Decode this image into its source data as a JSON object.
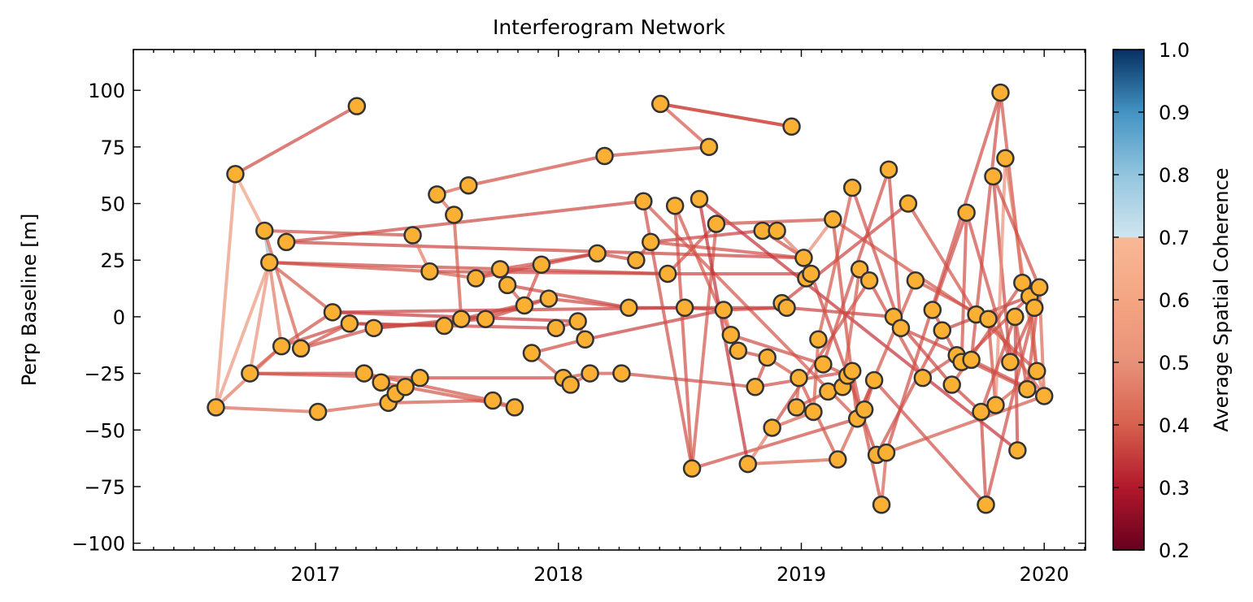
{
  "chart_data": {
    "type": "scatter",
    "title": "Interferogram Network",
    "xlabel": "",
    "ylabel": "Perp Baseline [m]",
    "xlim": [
      2016.25,
      2020.17
    ],
    "ylim": [
      -103,
      118
    ],
    "x_ticks": [
      2017,
      2018,
      2019,
      2020
    ],
    "y_ticks": [
      -100,
      -75,
      -50,
      -25,
      0,
      25,
      50,
      75,
      100
    ],
    "y_tick_labels": [
      "−100",
      "−75",
      "−50",
      "−25",
      "0",
      "25",
      "50",
      "75",
      "100"
    ],
    "grid": false,
    "colorbar": {
      "label": "Average Spatial Coherence",
      "min": 0.2,
      "max": 1.0,
      "ticks": [
        0.2,
        0.3,
        0.4,
        0.5,
        0.6,
        0.7,
        0.8,
        0.9,
        1.0
      ],
      "tick_labels": [
        "0.2",
        "0.3",
        "0.4",
        "0.5",
        "0.6",
        "0.7",
        "0.8",
        "0.9",
        "1.0"
      ],
      "colormap": "RdBu",
      "masked_below_above": 0.7
    },
    "node_color": "#fbb034",
    "node_edge_color": "#333333",
    "points": [
      {
        "x": 2016.59,
        "y": -40
      },
      {
        "x": 2016.67,
        "y": 63
      },
      {
        "x": 2016.73,
        "y": -25
      },
      {
        "x": 2016.79,
        "y": 38
      },
      {
        "x": 2016.81,
        "y": 24
      },
      {
        "x": 2016.86,
        "y": -13
      },
      {
        "x": 2016.88,
        "y": 33
      },
      {
        "x": 2016.94,
        "y": -14
      },
      {
        "x": 2017.01,
        "y": -42
      },
      {
        "x": 2017.07,
        "y": 2
      },
      {
        "x": 2017.14,
        "y": -3
      },
      {
        "x": 2017.17,
        "y": 93
      },
      {
        "x": 2017.24,
        "y": -5
      },
      {
        "x": 2017.2,
        "y": -25
      },
      {
        "x": 2017.27,
        "y": -29
      },
      {
        "x": 2017.3,
        "y": -38
      },
      {
        "x": 2017.33,
        "y": -34
      },
      {
        "x": 2017.37,
        "y": -31
      },
      {
        "x": 2017.4,
        "y": 36
      },
      {
        "x": 2017.43,
        "y": -27
      },
      {
        "x": 2017.47,
        "y": 20
      },
      {
        "x": 2017.5,
        "y": 54
      },
      {
        "x": 2017.53,
        "y": -4
      },
      {
        "x": 2017.57,
        "y": 45
      },
      {
        "x": 2017.6,
        "y": -1
      },
      {
        "x": 2017.63,
        "y": 58
      },
      {
        "x": 2017.66,
        "y": 17
      },
      {
        "x": 2017.7,
        "y": -1
      },
      {
        "x": 2017.73,
        "y": -37
      },
      {
        "x": 2017.76,
        "y": 21
      },
      {
        "x": 2017.79,
        "y": 14
      },
      {
        "x": 2017.82,
        "y": -40
      },
      {
        "x": 2017.86,
        "y": 5
      },
      {
        "x": 2017.89,
        "y": -16
      },
      {
        "x": 2017.93,
        "y": 23
      },
      {
        "x": 2017.96,
        "y": 8
      },
      {
        "x": 2017.99,
        "y": -5
      },
      {
        "x": 2018.02,
        "y": -27
      },
      {
        "x": 2018.05,
        "y": -30
      },
      {
        "x": 2018.08,
        "y": -2
      },
      {
        "x": 2018.11,
        "y": -10
      },
      {
        "x": 2018.13,
        "y": -25
      },
      {
        "x": 2018.16,
        "y": 28
      },
      {
        "x": 2018.19,
        "y": 71
      },
      {
        "x": 2018.26,
        "y": -25
      },
      {
        "x": 2018.29,
        "y": 4
      },
      {
        "x": 2018.32,
        "y": 25
      },
      {
        "x": 2018.35,
        "y": 51
      },
      {
        "x": 2018.38,
        "y": 33
      },
      {
        "x": 2018.42,
        "y": 94
      },
      {
        "x": 2018.45,
        "y": 19
      },
      {
        "x": 2018.48,
        "y": 49
      },
      {
        "x": 2018.52,
        "y": 4
      },
      {
        "x": 2018.55,
        "y": -67
      },
      {
        "x": 2018.58,
        "y": 52
      },
      {
        "x": 2018.62,
        "y": 75
      },
      {
        "x": 2018.65,
        "y": 41
      },
      {
        "x": 2018.68,
        "y": 3
      },
      {
        "x": 2018.71,
        "y": -8
      },
      {
        "x": 2018.74,
        "y": -15
      },
      {
        "x": 2018.78,
        "y": -65
      },
      {
        "x": 2018.81,
        "y": -31
      },
      {
        "x": 2018.84,
        "y": 38
      },
      {
        "x": 2018.86,
        "y": -18
      },
      {
        "x": 2018.88,
        "y": -49
      },
      {
        "x": 2018.9,
        "y": 38
      },
      {
        "x": 2018.92,
        "y": 6
      },
      {
        "x": 2018.94,
        "y": 4
      },
      {
        "x": 2018.96,
        "y": 84
      },
      {
        "x": 2018.98,
        "y": -40
      },
      {
        "x": 2018.99,
        "y": -27
      },
      {
        "x": 2019.01,
        "y": 26
      },
      {
        "x": 2019.02,
        "y": 17
      },
      {
        "x": 2019.04,
        "y": 19
      },
      {
        "x": 2019.05,
        "y": -42
      },
      {
        "x": 2019.07,
        "y": -10
      },
      {
        "x": 2019.09,
        "y": -21
      },
      {
        "x": 2019.11,
        "y": -33
      },
      {
        "x": 2019.13,
        "y": 43
      },
      {
        "x": 2019.15,
        "y": -63
      },
      {
        "x": 2019.17,
        "y": -31
      },
      {
        "x": 2019.19,
        "y": -26
      },
      {
        "x": 2019.21,
        "y": -24
      },
      {
        "x": 2019.21,
        "y": 57
      },
      {
        "x": 2019.23,
        "y": -45
      },
      {
        "x": 2019.24,
        "y": 21
      },
      {
        "x": 2019.26,
        "y": -41
      },
      {
        "x": 2019.28,
        "y": 16
      },
      {
        "x": 2019.3,
        "y": -28
      },
      {
        "x": 2019.31,
        "y": -61
      },
      {
        "x": 2019.33,
        "y": -83
      },
      {
        "x": 2019.35,
        "y": -60
      },
      {
        "x": 2019.36,
        "y": 65
      },
      {
        "x": 2019.38,
        "y": 0
      },
      {
        "x": 2019.41,
        "y": -5
      },
      {
        "x": 2019.44,
        "y": 50
      },
      {
        "x": 2019.47,
        "y": 16
      },
      {
        "x": 2019.5,
        "y": -27
      },
      {
        "x": 2019.54,
        "y": 3
      },
      {
        "x": 2019.58,
        "y": -6
      },
      {
        "x": 2019.62,
        "y": -30
      },
      {
        "x": 2019.64,
        "y": -17
      },
      {
        "x": 2019.66,
        "y": -20
      },
      {
        "x": 2019.68,
        "y": 46
      },
      {
        "x": 2019.7,
        "y": -19
      },
      {
        "x": 2019.72,
        "y": 1
      },
      {
        "x": 2019.74,
        "y": -42
      },
      {
        "x": 2019.76,
        "y": -83
      },
      {
        "x": 2019.77,
        "y": -1
      },
      {
        "x": 2019.79,
        "y": 62
      },
      {
        "x": 2019.8,
        "y": -39
      },
      {
        "x": 2019.82,
        "y": 99
      },
      {
        "x": 2019.84,
        "y": 70
      },
      {
        "x": 2019.86,
        "y": -20
      },
      {
        "x": 2019.88,
        "y": 0
      },
      {
        "x": 2019.89,
        "y": -59
      },
      {
        "x": 2019.91,
        "y": 15
      },
      {
        "x": 2019.93,
        "y": -32
      },
      {
        "x": 2019.94,
        "y": 9
      },
      {
        "x": 2019.96,
        "y": 4
      },
      {
        "x": 2019.97,
        "y": -24
      },
      {
        "x": 2019.98,
        "y": 13
      },
      {
        "x": 2020.0,
        "y": -35
      }
    ],
    "edges": [
      [
        1,
        11,
        0.44
      ],
      [
        0,
        1,
        0.62
      ],
      [
        1,
        3,
        0.66
      ],
      [
        3,
        4,
        0.78
      ],
      [
        0,
        4,
        0.62
      ],
      [
        0,
        5,
        0.55
      ],
      [
        2,
        4,
        0.6
      ],
      [
        3,
        18,
        0.45
      ],
      [
        3,
        7,
        0.5
      ],
      [
        4,
        20,
        0.47
      ],
      [
        4,
        5,
        0.55
      ],
      [
        4,
        9,
        0.48
      ],
      [
        2,
        5,
        0.5
      ],
      [
        0,
        8,
        0.52
      ],
      [
        2,
        13,
        0.45
      ],
      [
        2,
        19,
        0.47
      ],
      [
        5,
        9,
        0.46
      ],
      [
        5,
        10,
        0.44
      ],
      [
        7,
        10,
        0.46
      ],
      [
        7,
        12,
        0.45
      ],
      [
        6,
        47,
        0.44
      ],
      [
        6,
        71,
        0.43
      ],
      [
        4,
        50,
        0.44
      ],
      [
        8,
        15,
        0.5
      ],
      [
        9,
        39,
        0.4
      ],
      [
        9,
        52,
        0.42
      ],
      [
        10,
        22,
        0.45
      ],
      [
        10,
        36,
        0.43
      ],
      [
        12,
        24,
        0.44
      ],
      [
        12,
        27,
        0.44
      ],
      [
        13,
        14,
        0.49
      ],
      [
        13,
        28,
        0.47
      ],
      [
        14,
        16,
        0.49
      ],
      [
        14,
        31,
        0.47
      ],
      [
        15,
        17,
        0.5
      ],
      [
        15,
        28,
        0.48
      ],
      [
        16,
        19,
        0.47
      ],
      [
        17,
        19,
        0.48
      ],
      [
        18,
        20,
        0.55
      ],
      [
        19,
        37,
        0.44
      ],
      [
        20,
        26,
        0.5
      ],
      [
        20,
        50,
        0.44
      ],
      [
        21,
        23,
        0.52
      ],
      [
        21,
        25,
        0.5
      ],
      [
        25,
        43,
        0.46
      ],
      [
        23,
        24,
        0.48
      ],
      [
        22,
        32,
        0.45
      ],
      [
        24,
        35,
        0.44
      ],
      [
        26,
        29,
        0.5
      ],
      [
        26,
        34,
        0.44
      ],
      [
        27,
        35,
        0.44
      ],
      [
        28,
        31,
        0.5
      ],
      [
        29,
        30,
        0.52
      ],
      [
        29,
        42,
        0.45
      ],
      [
        30,
        32,
        0.48
      ],
      [
        30,
        45,
        0.44
      ],
      [
        32,
        34,
        0.45
      ],
      [
        33,
        40,
        0.45
      ],
      [
        33,
        38,
        0.48
      ],
      [
        34,
        42,
        0.42
      ],
      [
        35,
        45,
        0.44
      ],
      [
        36,
        39,
        0.44
      ],
      [
        37,
        41,
        0.47
      ],
      [
        38,
        41,
        0.47
      ],
      [
        39,
        40,
        0.45
      ],
      [
        40,
        57,
        0.42
      ],
      [
        41,
        44,
        0.47
      ],
      [
        42,
        46,
        0.45
      ],
      [
        43,
        55,
        0.45
      ],
      [
        44,
        61,
        0.45
      ],
      [
        45,
        52,
        0.42
      ],
      [
        46,
        48,
        0.45
      ],
      [
        47,
        53,
        0.45
      ],
      [
        47,
        84,
        0.47
      ],
      [
        48,
        62,
        0.42
      ],
      [
        48,
        71,
        0.45
      ],
      [
        49,
        55,
        0.48
      ],
      [
        49,
        68,
        0.46
      ],
      [
        50,
        56,
        0.46
      ],
      [
        50,
        73,
        0.43
      ],
      [
        51,
        53,
        0.46
      ],
      [
        51,
        58,
        0.47
      ],
      [
        52,
        57,
        0.4
      ],
      [
        52,
        67,
        0.42
      ],
      [
        53,
        84,
        0.45
      ],
      [
        53,
        56,
        0.47
      ],
      [
        54,
        60,
        0.38
      ],
      [
        54,
        115,
        0.38
      ],
      [
        56,
        78,
        0.46
      ],
      [
        57,
        67,
        0.42
      ],
      [
        57,
        58,
        0.55
      ],
      [
        58,
        59,
        0.55
      ],
      [
        58,
        76,
        0.45
      ],
      [
        59,
        63,
        0.45
      ],
      [
        60,
        79,
        0.5
      ],
      [
        60,
        64,
        0.55
      ],
      [
        61,
        63,
        0.45
      ],
      [
        61,
        82,
        0.45
      ],
      [
        62,
        65,
        0.45
      ],
      [
        62,
        71,
        0.45
      ],
      [
        63,
        70,
        0.48
      ],
      [
        64,
        74,
        0.5
      ],
      [
        64,
        87,
        0.45
      ],
      [
        65,
        71,
        0.55
      ],
      [
        66,
        67,
        0.45
      ],
      [
        66,
        95,
        0.43
      ],
      [
        67,
        93,
        0.42
      ],
      [
        68,
        49,
        0.46
      ],
      [
        69,
        70,
        0.5
      ],
      [
        69,
        77,
        0.46
      ],
      [
        70,
        79,
        0.47
      ],
      [
        71,
        72,
        0.5
      ],
      [
        71,
        78,
        0.58
      ],
      [
        72,
        73,
        0.5
      ],
      [
        73,
        89,
        0.44
      ],
      [
        74,
        75,
        0.5
      ],
      [
        75,
        83,
        0.48
      ],
      [
        76,
        81,
        0.46
      ],
      [
        76,
        92,
        0.45
      ],
      [
        77,
        80,
        0.45
      ],
      [
        78,
        84,
        0.46
      ],
      [
        78,
        105,
        0.47
      ],
      [
        79,
        88,
        0.5
      ],
      [
        80,
        85,
        0.48
      ],
      [
        81,
        82,
        0.46
      ],
      [
        82,
        90,
        0.46
      ],
      [
        83,
        94,
        0.45
      ],
      [
        84,
        96,
        0.47
      ],
      [
        85,
        87,
        0.47
      ],
      [
        86,
        88,
        0.44
      ],
      [
        87,
        97,
        0.45
      ],
      [
        88,
        107,
        0.45
      ],
      [
        89,
        99,
        0.45
      ],
      [
        90,
        91,
        0.5
      ],
      [
        91,
        111,
        0.45
      ],
      [
        92,
        94,
        0.45
      ],
      [
        93,
        100,
        0.43
      ],
      [
        94,
        104,
        0.44
      ],
      [
        95,
        105,
        0.47
      ],
      [
        96,
        108,
        0.47
      ],
      [
        97,
        101,
        0.45
      ],
      [
        98,
        103,
        0.44
      ],
      [
        99,
        118,
        0.42
      ],
      [
        100,
        106,
        0.43
      ],
      [
        101,
        117,
        0.44
      ],
      [
        102,
        103,
        0.46
      ],
      [
        103,
        113,
        0.45
      ],
      [
        104,
        111,
        0.45
      ],
      [
        105,
        120,
        0.45
      ],
      [
        106,
        107,
        0.44
      ],
      [
        107,
        119,
        0.45
      ],
      [
        108,
        110,
        0.47
      ],
      [
        109,
        113,
        0.44
      ],
      [
        110,
        112,
        0.6
      ],
      [
        111,
        116,
        0.47
      ],
      [
        112,
        120,
        0.55
      ],
      [
        113,
        119,
        0.45
      ],
      [
        114,
        115,
        0.43
      ],
      [
        114,
        117,
        0.45
      ],
      [
        116,
        118,
        0.44
      ],
      [
        117,
        121,
        0.45
      ],
      [
        118,
        120,
        0.48
      ],
      [
        119,
        121,
        0.5
      ],
      [
        120,
        122,
        0.55
      ],
      [
        121,
        122,
        0.52
      ],
      [
        110,
        120,
        0.5
      ],
      [
        108,
        122,
        0.48
      ],
      [
        109,
        121,
        0.45
      ],
      [
        104,
        122,
        0.45
      ],
      [
        102,
        118,
        0.45
      ],
      [
        91,
        122,
        0.48
      ],
      [
        98,
        101,
        0.45
      ],
      [
        106,
        114,
        0.45
      ],
      [
        100,
        116,
        0.45
      ]
    ]
  }
}
